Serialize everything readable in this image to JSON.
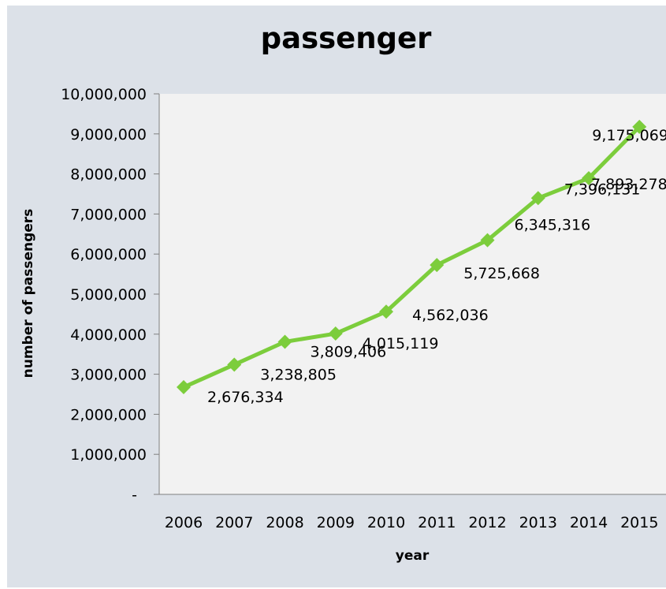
{
  "chart_data": {
    "type": "line",
    "title": "passenger",
    "xlabel": "year",
    "ylabel": "number of passengers",
    "categories": [
      "2006",
      "2007",
      "2008",
      "2009",
      "2010",
      "2011",
      "2012",
      "2013",
      "2014",
      "2015"
    ],
    "series": [
      {
        "values": [
          2676334,
          3238805,
          3809406,
          4015119,
          4562036,
          5725668,
          6345316,
          7396131,
          7893278,
          9175069
        ],
        "labels": [
          "2,676,334",
          "3,238,805",
          "3,809,406",
          "4,015,119",
          "4,562,036",
          "5,725,668",
          "6,345,316",
          "7,396,131",
          "7,893,278",
          "9,175,069"
        ],
        "color": "#7ccd3c"
      }
    ],
    "ylim": [
      0,
      10000000
    ],
    "yticks": [
      {
        "value": 0,
        "label": "-"
      },
      {
        "value": 1000000,
        "label": "1,000,000"
      },
      {
        "value": 2000000,
        "label": "2,000,000"
      },
      {
        "value": 3000000,
        "label": "3,000,000"
      },
      {
        "value": 4000000,
        "label": "4,000,000"
      },
      {
        "value": 5000000,
        "label": "5,000,000"
      },
      {
        "value": 6000000,
        "label": "6,000,000"
      },
      {
        "value": 7000000,
        "label": "7,000,000"
      },
      {
        "value": 8000000,
        "label": "8,000,000"
      },
      {
        "value": 9000000,
        "label": "9,000,000"
      },
      {
        "value": 10000000,
        "label": "10,000,000"
      }
    ],
    "grid": false,
    "legend": "none",
    "plot_background": "#f2f2f2",
    "chart_background": "#dce1e8"
  }
}
